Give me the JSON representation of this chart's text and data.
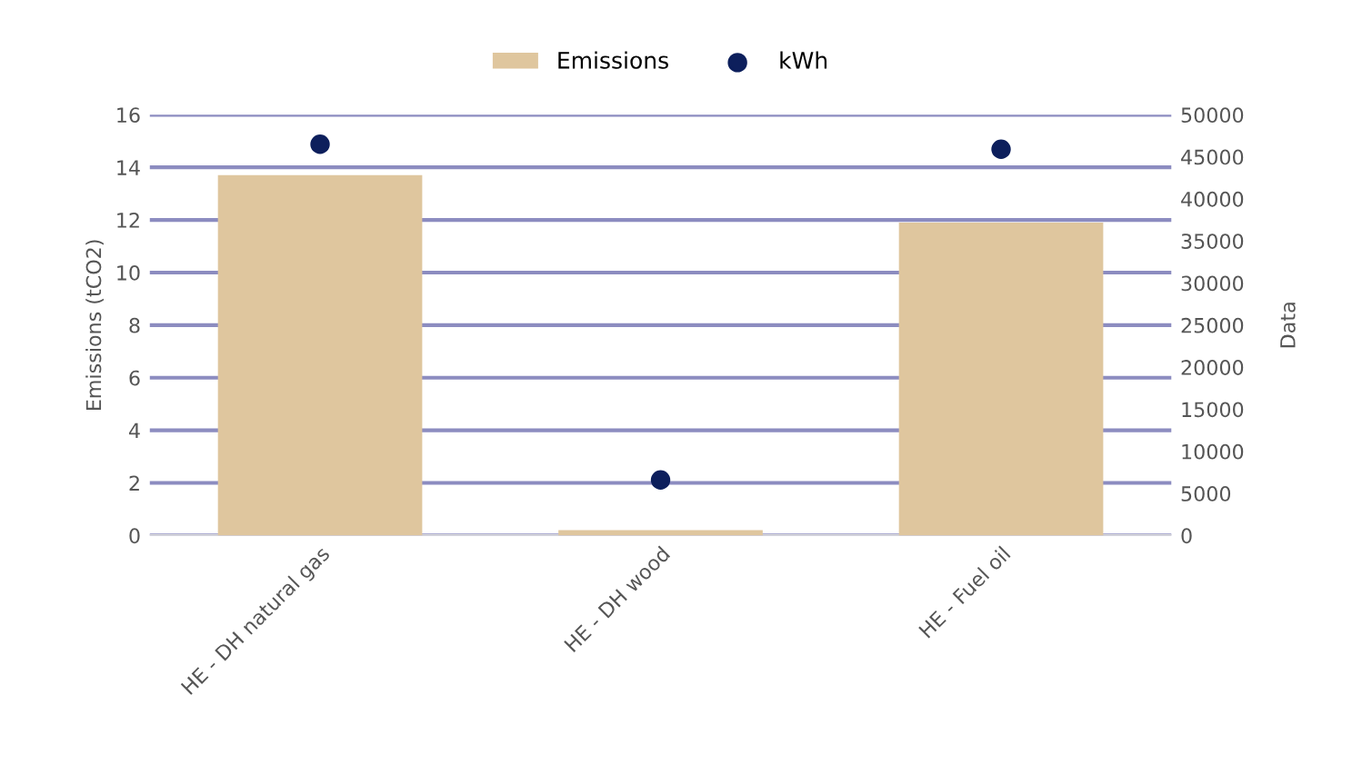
{
  "chart_data": {
    "type": "bar",
    "categories": [
      "HE - DH natural gas",
      "HE - DH wood",
      "HE - Fuel oil"
    ],
    "series": [
      {
        "name": "Emissions",
        "color": "#dfc69e",
        "values": [
          13.7,
          0.2,
          11.9
        ]
      },
      {
        "name": "kWh",
        "type": "scatter",
        "axis": "y2",
        "color": "#0d1f5c",
        "values": [
          46500,
          6600,
          45900
        ]
      }
    ],
    "ylabel": "Emissions (tCO2)",
    "y2label": "Data",
    "ylim": [
      0,
      16
    ],
    "yticks": [
      0,
      2,
      4,
      6,
      8,
      10,
      12,
      14,
      16
    ],
    "y2lim": [
      0,
      50000
    ],
    "y2ticks": [
      0,
      5000,
      10000,
      15000,
      20000,
      25000,
      30000,
      35000,
      40000,
      45000,
      50000
    ],
    "grid": "y",
    "legend": "top",
    "marker": "circle"
  }
}
